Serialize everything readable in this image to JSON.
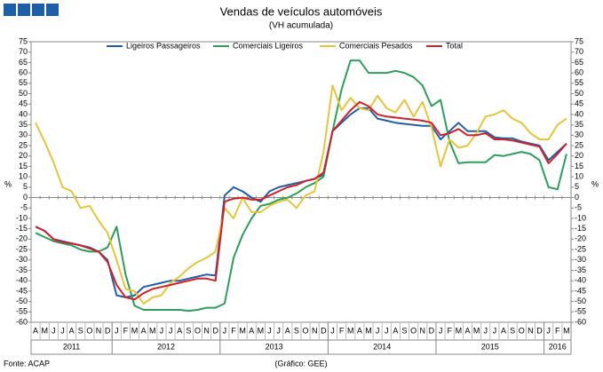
{
  "chart_data": {
    "type": "line",
    "title": "Vendas de veículos automóveis",
    "subtitle": "(VH acumulada)",
    "y_label": "%",
    "source": "Fonte: ACAP",
    "credit": "(Gráfico: GEE)",
    "categories": [
      "A",
      "M",
      "J",
      "J",
      "A",
      "S",
      "O",
      "N",
      "D",
      "J",
      "F",
      "M",
      "A",
      "M",
      "J",
      "J",
      "A",
      "S",
      "O",
      "N",
      "D",
      "J",
      "F",
      "M",
      "A",
      "M",
      "J",
      "J",
      "A",
      "S",
      "O",
      "N",
      "D",
      "J",
      "F",
      "M",
      "A",
      "M",
      "J",
      "J",
      "A",
      "S",
      "O",
      "N",
      "D",
      "J",
      "F",
      "M",
      "A",
      "M",
      "J",
      "J",
      "A",
      "S",
      "O",
      "N",
      "D",
      "J",
      "F",
      "M"
    ],
    "years": [
      "2011",
      "2012",
      "2013",
      "2014",
      "2015",
      "2016"
    ],
    "ylim": [
      -60,
      75
    ],
    "yticks": [
      -60,
      -55,
      -50,
      -45,
      -40,
      -35,
      -30,
      -25,
      -20,
      -15,
      -10,
      -5,
      0,
      5,
      10,
      15,
      20,
      25,
      30,
      35,
      40,
      45,
      50,
      55,
      60,
      65,
      70,
      75
    ],
    "legend": "top",
    "series": [
      {
        "name": "Ligeiros Passageiros",
        "color": "#1f5fa8",
        "values": [
          -14,
          -16,
          -20,
          -21,
          -22,
          -23,
          -24,
          -26,
          -30,
          -47,
          -48,
          -47,
          -43,
          -42,
          -41,
          -40,
          -40,
          -39,
          -38,
          -37,
          -37.5,
          1,
          5,
          3,
          0,
          -2,
          3,
          5,
          6,
          7,
          8,
          9,
          11,
          32,
          36,
          40,
          43,
          43,
          38,
          37,
          36,
          35.5,
          35,
          34.5,
          34.5,
          28,
          32,
          36,
          32,
          32,
          32,
          29,
          28.5,
          28.5,
          27,
          26,
          25,
          18,
          22,
          26
        ]
      },
      {
        "name": "Comerciais Ligeiros",
        "color": "#2e9e5b",
        "values": [
          -17,
          -19,
          -21,
          -22,
          -23,
          -25,
          -26,
          -26,
          -24,
          -14,
          -37,
          -52,
          -54,
          -54,
          -54,
          -54,
          -54,
          -54.5,
          -54,
          -53,
          -53,
          -51,
          -29,
          -18,
          -10,
          -4,
          -3,
          -1,
          0,
          2,
          5,
          7,
          10,
          32,
          52,
          66,
          66,
          60,
          60,
          60,
          61,
          60,
          58,
          54,
          44,
          47,
          27,
          16.5,
          17,
          17,
          17,
          20.5,
          20,
          21,
          22,
          21,
          18,
          5,
          4,
          21
        ]
      },
      {
        "name": "Comerciais Pesados",
        "color": "#e8c43a",
        "values": [
          36,
          27,
          17,
          5,
          3,
          -5,
          -4,
          -11,
          -17,
          -30,
          -44,
          -45,
          -51,
          -48,
          -47,
          -41,
          -38,
          -34,
          -31,
          -29,
          -26,
          -5,
          -10,
          0,
          -7,
          -7,
          -4,
          -2,
          -1,
          -5,
          1,
          3,
          22,
          54,
          42,
          48,
          43,
          42,
          49,
          43,
          41,
          47,
          39,
          46,
          34,
          15,
          28,
          24,
          25,
          31,
          39,
          40,
          42,
          38,
          36,
          31,
          28,
          28,
          35,
          38
        ]
      },
      {
        "name": "Total",
        "color": "#d0202a",
        "values": [
          -14,
          -16,
          -20,
          -21.5,
          -22,
          -23,
          -24.5,
          -26,
          -31,
          -42,
          -48,
          -49,
          -46,
          -44,
          -43,
          -42,
          -41,
          -40,
          -39,
          -39,
          -40,
          -2,
          -0.5,
          0,
          -1,
          -1,
          1,
          3,
          5,
          6,
          8,
          9,
          12,
          32,
          37,
          42,
          46,
          44,
          40,
          39,
          38.5,
          38,
          37.5,
          37,
          36,
          30,
          31,
          33,
          30,
          30,
          31,
          28,
          28,
          27.5,
          26.5,
          25.5,
          24.5,
          16.5,
          21,
          26
        ]
      }
    ]
  }
}
